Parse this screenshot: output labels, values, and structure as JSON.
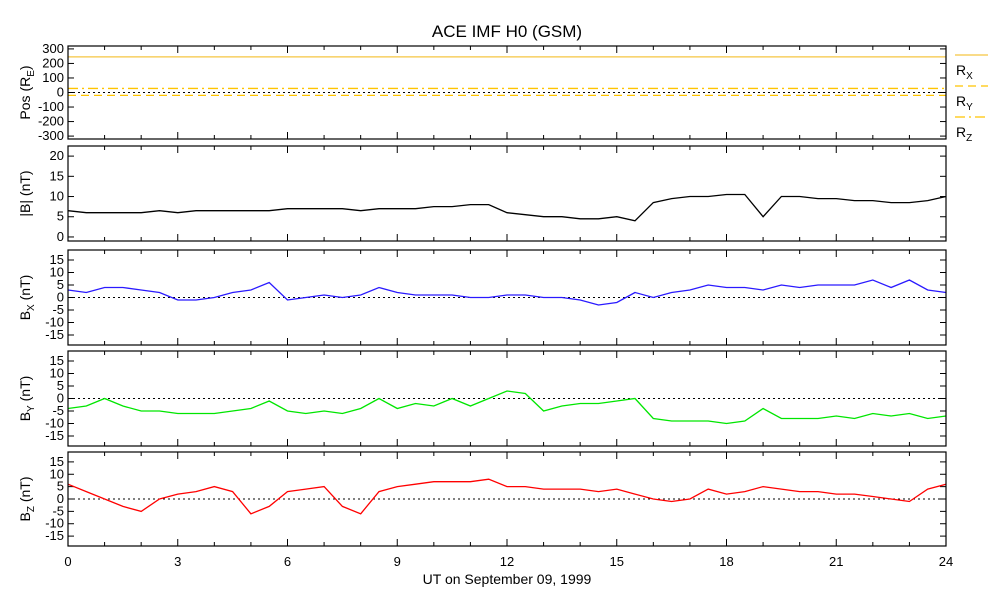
{
  "chart_data": {
    "type": "line",
    "title": "ACE IMF H0 (GSM)",
    "xlabel": "UT on September 09, 1999",
    "xlim": [
      0,
      24
    ],
    "xticks": [
      "0",
      "3",
      "6",
      "9",
      "12",
      "15",
      "18",
      "21",
      "24"
    ],
    "x": [
      0,
      0.5,
      1,
      1.5,
      2,
      2.5,
      3,
      3.5,
      4,
      4.5,
      5,
      5.5,
      6,
      6.5,
      7,
      7.5,
      8,
      8.5,
      9,
      9.5,
      10,
      10.5,
      11,
      11.5,
      12,
      12.5,
      13,
      13.5,
      14,
      14.5,
      15,
      15.5,
      16,
      16.5,
      17,
      17.5,
      18,
      18.5,
      19,
      19.5,
      20,
      20.5,
      21,
      21.5,
      22,
      22.5,
      23,
      23.5,
      24
    ],
    "panels": [
      {
        "ylabel": "Pos (R",
        "ylabel_sub": "E",
        "ylabel_end": ")",
        "ylim": [
          -320,
          320
        ],
        "yticks": [
          -300,
          -200,
          -100,
          0,
          100,
          200,
          300
        ],
        "zero_line": true,
        "legend": [
          {
            "name": "R",
            "sub": "X",
            "style": "solid"
          },
          {
            "name": "R",
            "sub": "Y",
            "style": "dashed"
          },
          {
            "name": "R",
            "sub": "Z",
            "style": "dashdot"
          }
        ],
        "series": [
          {
            "name": "Rx",
            "color": "#f5c542",
            "style": "solid",
            "constant": 245
          },
          {
            "name": "Ry",
            "color": "#ffc400",
            "style": "dashed",
            "constant": -20
          },
          {
            "name": "Rz",
            "color": "#ffc400",
            "style": "dashdot",
            "constant": 28
          }
        ]
      },
      {
        "ylabel": "|B| (nT)",
        "ylabel_sub": "",
        "ylabel_end": "",
        "ylim": [
          -1,
          22.5
        ],
        "yticks": [
          0,
          5,
          10,
          15,
          20
        ],
        "zero_line": false,
        "series": [
          {
            "name": "|B|",
            "color": "#000000",
            "style": "solid",
            "values": [
              6.5,
              6,
              6,
              6,
              6,
              6.5,
              6,
              6.5,
              6.5,
              6.5,
              6.5,
              6.5,
              7,
              7,
              7,
              7,
              6.5,
              7,
              7,
              7,
              7.5,
              7.5,
              8,
              8,
              6,
              5.5,
              5,
              5,
              4.5,
              4.5,
              5,
              4,
              8.5,
              9.5,
              10,
              10,
              10.5,
              10.5,
              5,
              10,
              10,
              9.5,
              9.5,
              9,
              9,
              8.5,
              8.5,
              9,
              10
            ]
          }
        ]
      },
      {
        "ylabel": "B",
        "ylabel_sub": "X",
        "ylabel_end": " (nT)",
        "ylim": [
          -19,
          19
        ],
        "yticks": [
          -15,
          -10,
          -5,
          0,
          5,
          10,
          15
        ],
        "zero_line": true,
        "series": [
          {
            "name": "Bx",
            "color": "#2a1aff",
            "style": "solid",
            "values": [
              3,
              2,
              4,
              4,
              3,
              2,
              -1,
              -1,
              0,
              2,
              3,
              6,
              -1,
              0,
              1,
              0,
              1,
              4,
              2,
              1,
              1,
              1,
              0,
              0,
              1,
              1,
              0,
              0,
              -1,
              -3,
              -2,
              2,
              0,
              2,
              3,
              5,
              4,
              4,
              3,
              5,
              4,
              5,
              5,
              5,
              7,
              4,
              7,
              3,
              2
            ]
          }
        ]
      },
      {
        "ylabel": "B",
        "ylabel_sub": "Y",
        "ylabel_end": " (nT)",
        "ylim": [
          -19,
          19
        ],
        "yticks": [
          -15,
          -10,
          -5,
          0,
          5,
          10,
          15
        ],
        "zero_line": true,
        "series": [
          {
            "name": "By",
            "color": "#00e600",
            "style": "solid",
            "values": [
              -4,
              -3,
              0,
              -3,
              -5,
              -5,
              -6,
              -6,
              -6,
              -5,
              -4,
              -1,
              -5,
              -6,
              -5,
              -6,
              -4,
              0,
              -4,
              -2,
              -3,
              0,
              -3,
              0,
              3,
              2,
              -5,
              -3,
              -2,
              -2,
              -1,
              0,
              -8,
              -9,
              -9,
              -9,
              -10,
              -9,
              -4,
              -8,
              -8,
              -8,
              -7,
              -8,
              -6,
              -7,
              -6,
              -8,
              -7
            ]
          }
        ]
      },
      {
        "ylabel": "B",
        "ylabel_sub": "Z",
        "ylabel_end": " (nT)",
        "ylim": [
          -19,
          19
        ],
        "yticks": [
          -15,
          -10,
          -5,
          0,
          5,
          10,
          15
        ],
        "zero_line": true,
        "series": [
          {
            "name": "Bz",
            "color": "#ff0000",
            "style": "solid",
            "values": [
              6,
              3,
              0,
              -3,
              -5,
              0,
              2,
              3,
              5,
              3,
              -6,
              -3,
              3,
              4,
              5,
              -3,
              -6,
              3,
              5,
              6,
              7,
              7,
              7,
              8,
              5,
              5,
              4,
              4,
              4,
              3,
              4,
              2,
              0,
              -1,
              0,
              4,
              2,
              3,
              5,
              4,
              3,
              3,
              2,
              2,
              1,
              0,
              -1,
              4,
              6
            ]
          }
        ]
      }
    ]
  }
}
